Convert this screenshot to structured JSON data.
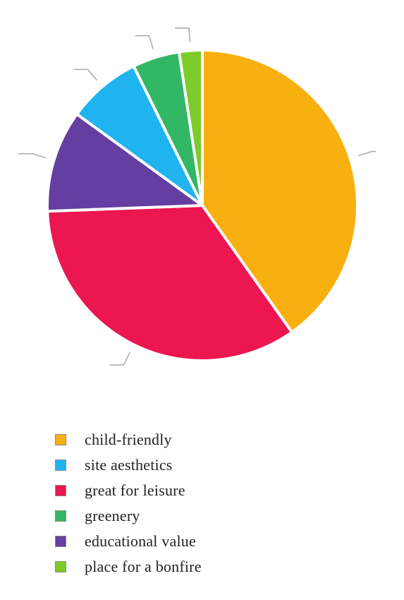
{
  "chart_data": {
    "type": "pie",
    "title": "",
    "slices": [
      {
        "label": "child-friendly",
        "value": 40.2,
        "color": "#F8B011"
      },
      {
        "label": "great for leisure",
        "value": 34.2,
        "color": "#EC1651"
      },
      {
        "label": "educational value",
        "value": 10.6,
        "color": "#643EA0"
      },
      {
        "label": "site aesthetics",
        "value": 7.7,
        "color": "#1FB4F0"
      },
      {
        "label": "greenery",
        "value": 4.9,
        "color": "#32B764"
      },
      {
        "label": "place for a bonfire",
        "value": 2.4,
        "color": "#7DCC29"
      }
    ],
    "legend": {
      "placement": "bottom",
      "items": [
        {
          "label": "child-friendly",
          "color": "#F8B011"
        },
        {
          "label": "site aesthetics",
          "color": "#1FB4F0"
        },
        {
          "label": "great for leisure",
          "color": "#EC1651"
        },
        {
          "label": "greenery",
          "color": "#32B764"
        },
        {
          "label": "educational value",
          "color": "#643EA0"
        },
        {
          "label": "place for a bonfire",
          "color": "#7DCC29"
        }
      ]
    }
  }
}
